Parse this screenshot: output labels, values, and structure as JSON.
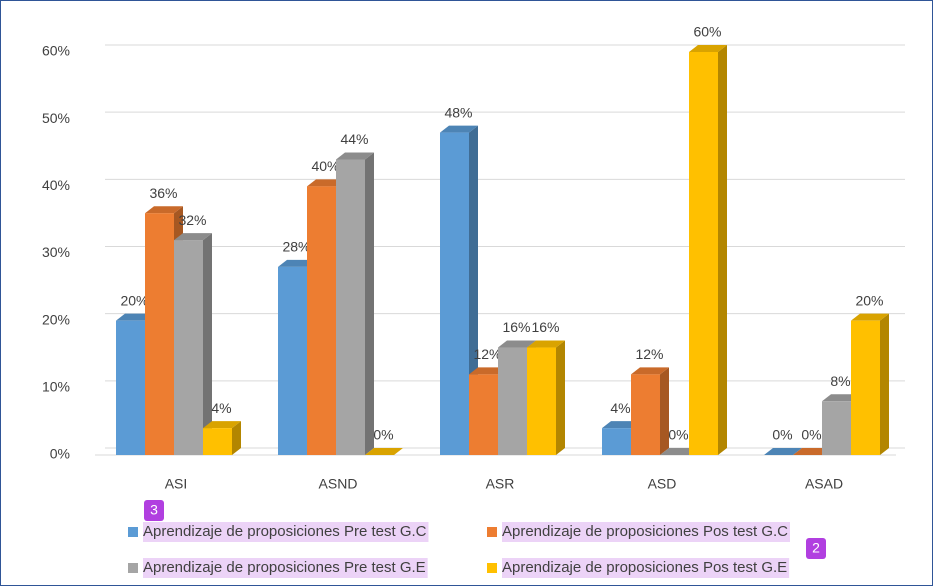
{
  "chart_data": {
    "type": "bar3d",
    "categories": [
      "ASI",
      "ASND",
      "ASR",
      "ASD",
      "ASAD"
    ],
    "series": [
      {
        "name": "Aprendizaje de proposiciones Pre test G.C",
        "color": "#5b9bd5",
        "values": [
          20,
          28,
          48,
          4,
          0
        ],
        "value_labels": [
          "20%",
          "28%",
          "48%",
          "4%",
          "0%"
        ]
      },
      {
        "name": "Aprendizaje de proposiciones Pos test G.C",
        "color": "#ed7d31",
        "values": [
          36,
          40,
          12,
          12,
          0
        ],
        "value_labels": [
          "36%",
          "40%",
          "12%",
          "12%",
          "0%"
        ]
      },
      {
        "name": "Aprendizaje de proposiciones Pre test G.E",
        "color": "#a5a5a5",
        "values": [
          32,
          44,
          16,
          0,
          8
        ],
        "value_labels": [
          "32%",
          "44%",
          "16%",
          "0%",
          "8%"
        ]
      },
      {
        "name": "Aprendizaje de proposiciones Pos test G.E",
        "color": "#ffc000",
        "values": [
          4,
          0,
          16,
          60,
          20
        ],
        "value_labels": [
          "4%",
          "0%",
          "16%",
          "60%",
          "20%"
        ]
      }
    ],
    "ylim": [
      0,
      60
    ],
    "yticks": [
      {
        "value": 0,
        "label": "0%"
      },
      {
        "value": 10,
        "label": "10%"
      },
      {
        "value": 20,
        "label": "20%"
      },
      {
        "value": 30,
        "label": "30%"
      },
      {
        "value": 40,
        "label": "40%"
      },
      {
        "value": 50,
        "label": "50%"
      },
      {
        "value": 60,
        "label": "60%"
      }
    ],
    "grid": true,
    "legend": "bottom",
    "annotations": [
      "3",
      "2"
    ]
  }
}
